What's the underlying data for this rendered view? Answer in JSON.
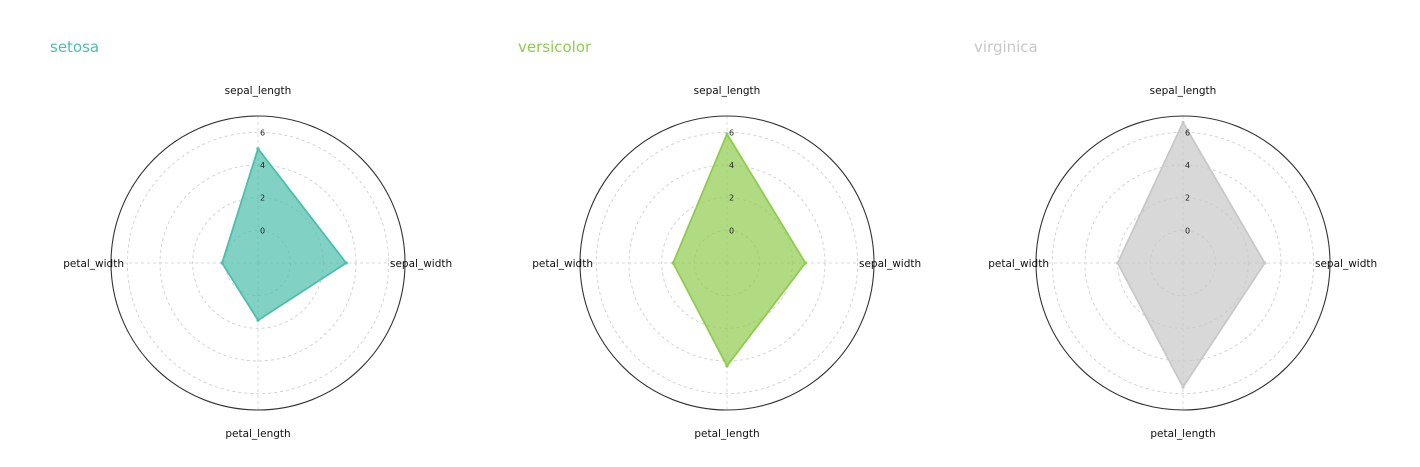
{
  "chart_data": [
    {
      "type": "radar",
      "title": "setosa",
      "color": "#4cbfab",
      "axes": [
        "sepal_length",
        "sepal_width",
        "petal_length",
        "petal_width"
      ],
      "values": [
        5.0,
        3.4,
        1.5,
        0.2
      ],
      "r_ticks": [
        "0",
        "2",
        "4",
        "6"
      ],
      "r_range": [
        -2,
        7
      ],
      "grid": true
    },
    {
      "type": "radar",
      "title": "versicolor",
      "color": "#8fcc4d",
      "axes": [
        "sepal_length",
        "sepal_width",
        "petal_length",
        "petal_width"
      ],
      "values": [
        5.9,
        2.8,
        4.3,
        1.3
      ],
      "r_ticks": [
        "0",
        "2",
        "4",
        "6"
      ],
      "r_range": [
        -2,
        7
      ],
      "grid": true
    },
    {
      "type": "radar",
      "title": "virginica",
      "color": "#c8c8c8",
      "axes": [
        "sepal_length",
        "sepal_width",
        "petal_length",
        "petal_width"
      ],
      "values": [
        6.6,
        3.0,
        5.6,
        2.0
      ],
      "r_ticks": [
        "0",
        "2",
        "4",
        "6"
      ],
      "r_range": [
        -2,
        7
      ],
      "grid": true
    }
  ]
}
